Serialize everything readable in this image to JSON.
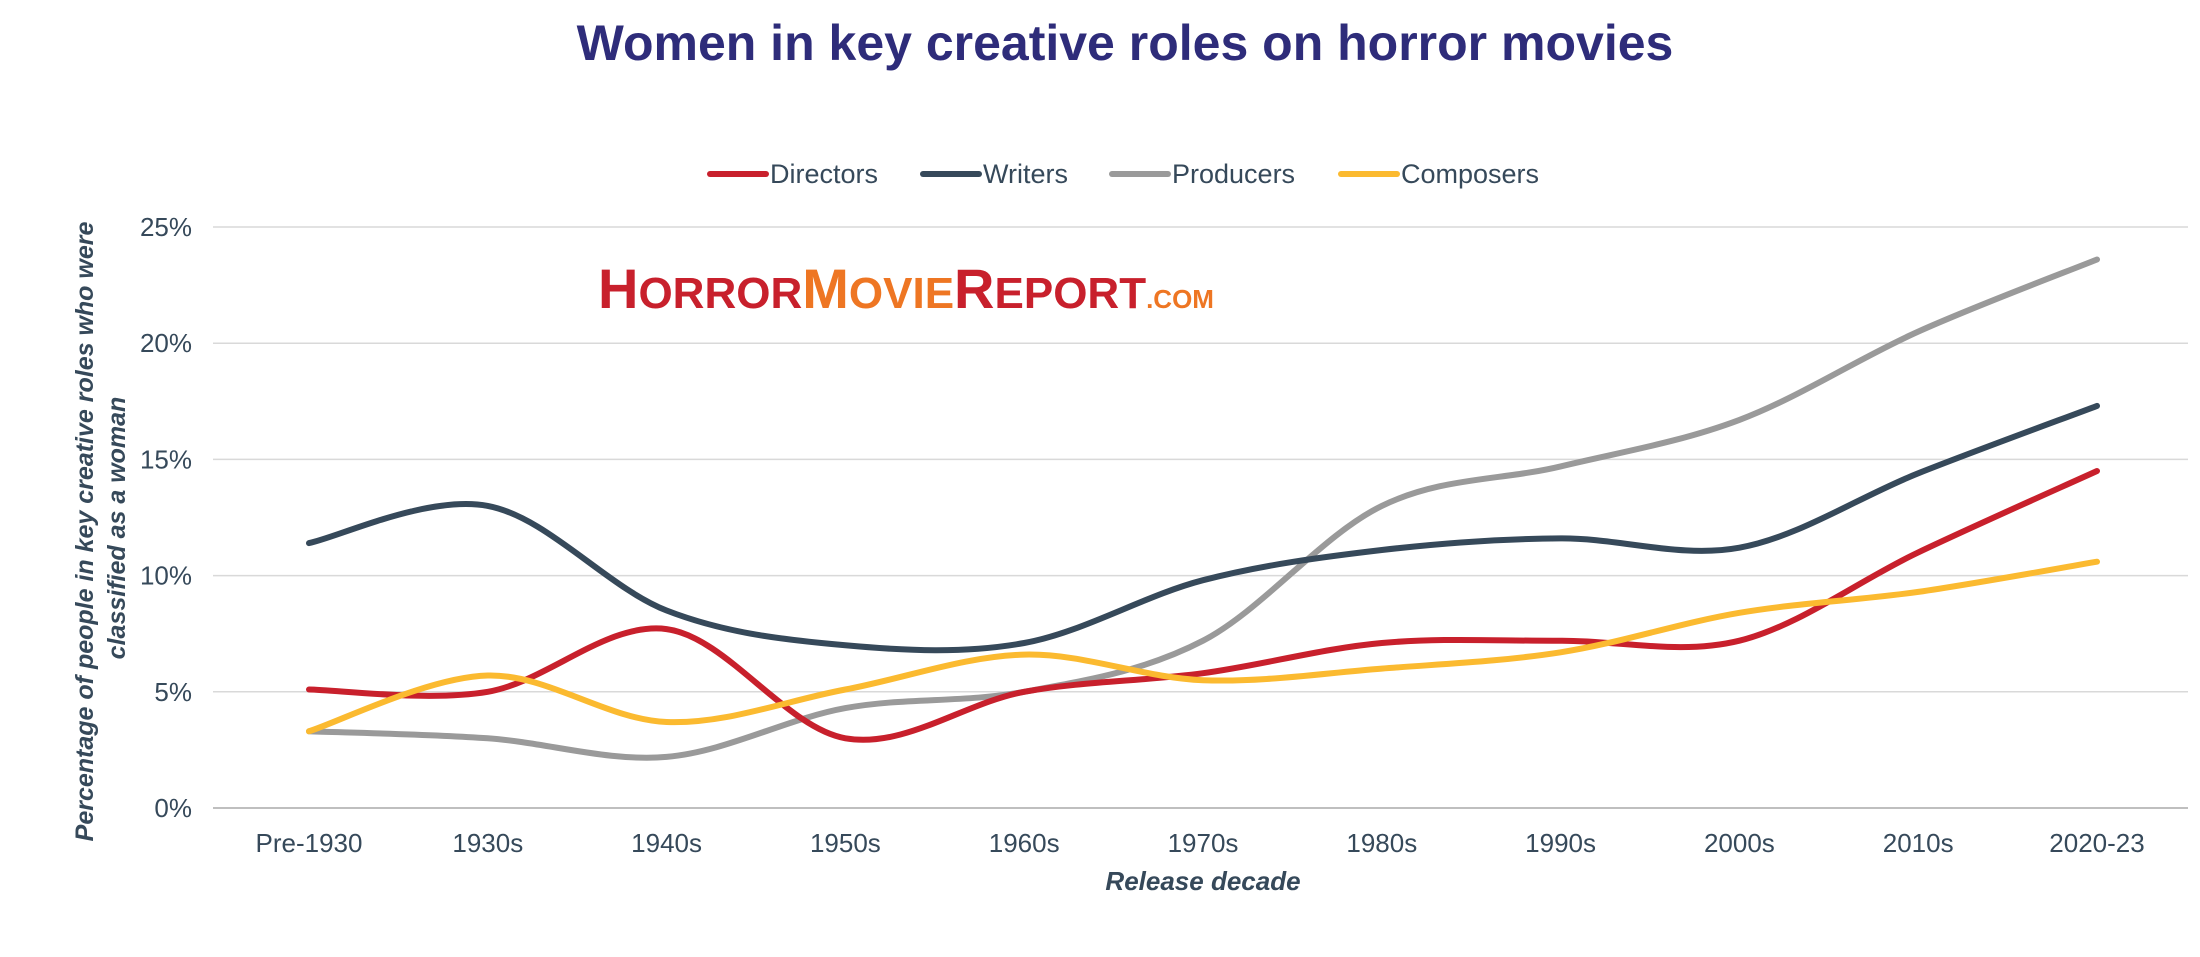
{
  "chart_data": {
    "type": "line",
    "title": "Women in key creative roles on horror movies",
    "xlabel": "Release decade",
    "ylabel_line1": "Percentage of people in key creative roles who were",
    "ylabel_line2": "classified as a woman",
    "categories": [
      "Pre-1930",
      "1930s",
      "1940s",
      "1950s",
      "1960s",
      "1970s",
      "1980s",
      "1990s",
      "2000s",
      "2010s",
      "2020-23"
    ],
    "y_ticks": [
      "0%",
      "5%",
      "10%",
      "15%",
      "20%",
      "25%"
    ],
    "ylim": [
      0,
      25
    ],
    "grid": true,
    "legend_position": "top-center",
    "series": [
      {
        "name": "Directors",
        "color": "#C8202C",
        "values": [
          5.1,
          5.0,
          7.7,
          3.0,
          5.0,
          5.8,
          7.1,
          7.2,
          7.2,
          11.0,
          14.5
        ]
      },
      {
        "name": "Writers",
        "color": "#36495A",
        "values": [
          11.4,
          13.0,
          8.5,
          7.0,
          7.1,
          9.8,
          11.1,
          11.6,
          11.2,
          14.4,
          17.3
        ]
      },
      {
        "name": "Producers",
        "color": "#9A9A9A",
        "values": [
          3.3,
          3.0,
          2.2,
          4.3,
          5.0,
          7.2,
          13.0,
          14.7,
          16.7,
          20.5,
          23.6
        ]
      },
      {
        "name": "Composers",
        "color": "#FBBA30",
        "values": [
          3.3,
          5.7,
          3.7,
          5.1,
          6.6,
          5.5,
          6.0,
          6.7,
          8.4,
          9.3,
          10.6
        ]
      }
    ]
  },
  "colors": {
    "title": "#2E2C7A",
    "axis_text": "#36495A",
    "grid": "#D9D9D9",
    "axis_line": "#BFBFBF",
    "logo_red": "#C8202C",
    "logo_orange": "#EE7623"
  },
  "logo": {
    "horror": "HORRORMOVIEREPORT",
    "domain": ".COM",
    "segments": [
      {
        "text": "HORROR",
        "color": "#C8202C"
      },
      {
        "text": "MOVIE",
        "color": "#EE7623"
      },
      {
        "text": "REPORT",
        "color": "#C8202C"
      },
      {
        "text": ".COM",
        "color": "#EE7623"
      }
    ]
  }
}
